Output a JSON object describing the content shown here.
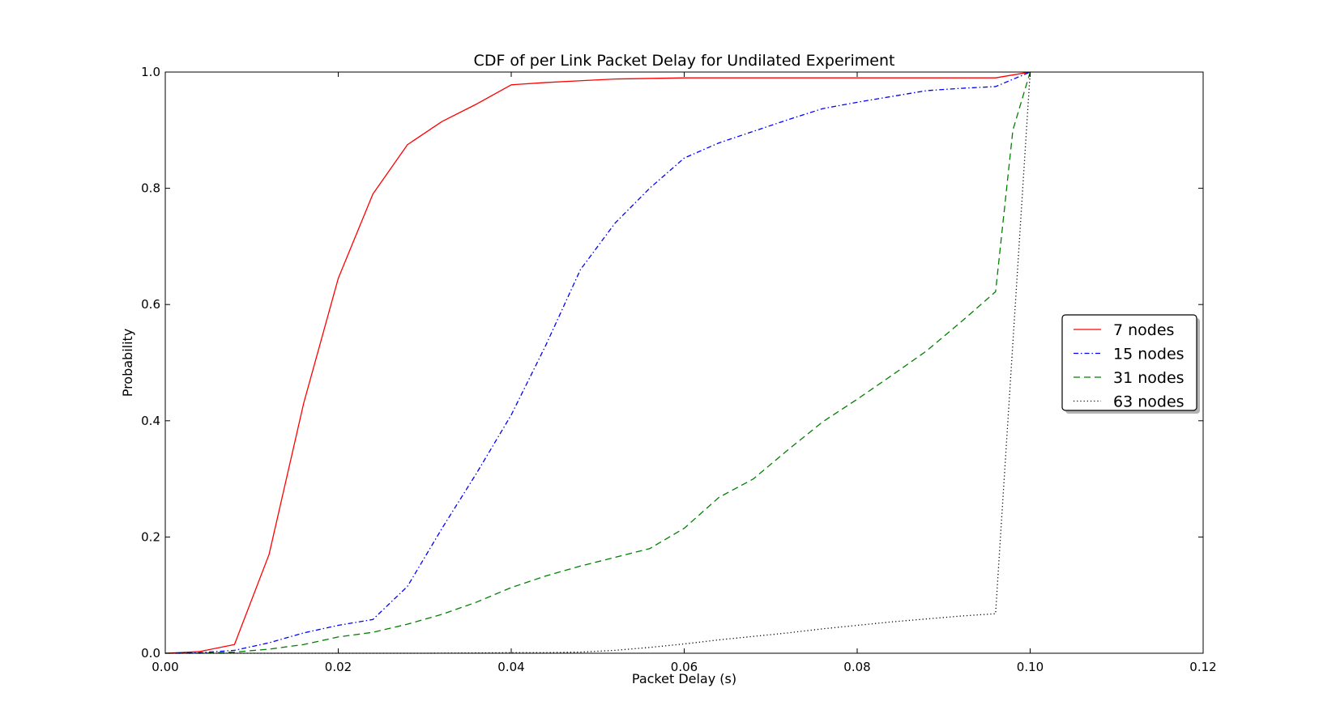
{
  "chart_data": {
    "type": "line",
    "title": "CDF of per Link Packet Delay for Undilated Experiment",
    "xlabel": "Packet Delay (s)",
    "ylabel": "Probability",
    "xlim": [
      0.0,
      0.12
    ],
    "ylim": [
      0.0,
      1.0
    ],
    "xticks": [
      "0.00",
      "0.02",
      "0.04",
      "0.06",
      "0.08",
      "0.10",
      "0.12"
    ],
    "yticks": [
      "0.0",
      "0.2",
      "0.4",
      "0.6",
      "0.8",
      "1.0"
    ],
    "grid": false,
    "legend_position": "right",
    "series": [
      {
        "name": "7 nodes",
        "color": "#ff0000",
        "style": "solid",
        "x": [
          0.0,
          0.004,
          0.008,
          0.012,
          0.016,
          0.02,
          0.024,
          0.028,
          0.032,
          0.036,
          0.04,
          0.044,
          0.048,
          0.052,
          0.06,
          0.08,
          0.096,
          0.1
        ],
        "y": [
          0.0,
          0.003,
          0.015,
          0.17,
          0.43,
          0.645,
          0.79,
          0.875,
          0.915,
          0.945,
          0.978,
          0.982,
          0.985,
          0.988,
          0.99,
          0.99,
          0.99,
          1.0
        ]
      },
      {
        "name": "15 nodes",
        "color": "#0000ff",
        "style": "dashdot",
        "x": [
          0.0,
          0.004,
          0.008,
          0.012,
          0.016,
          0.02,
          0.024,
          0.028,
          0.032,
          0.036,
          0.04,
          0.044,
          0.048,
          0.052,
          0.056,
          0.06,
          0.064,
          0.068,
          0.072,
          0.076,
          0.08,
          0.084,
          0.088,
          0.092,
          0.096,
          0.1
        ],
        "y": [
          0.0,
          0.001,
          0.005,
          0.018,
          0.035,
          0.048,
          0.058,
          0.115,
          0.215,
          0.31,
          0.41,
          0.53,
          0.66,
          0.74,
          0.8,
          0.852,
          0.878,
          0.898,
          0.918,
          0.937,
          0.948,
          0.958,
          0.968,
          0.972,
          0.975,
          1.0
        ]
      },
      {
        "name": "31 nodes",
        "color": "#008000",
        "style": "dashed",
        "x": [
          0.0,
          0.004,
          0.008,
          0.012,
          0.016,
          0.02,
          0.024,
          0.028,
          0.032,
          0.036,
          0.04,
          0.044,
          0.048,
          0.052,
          0.056,
          0.06,
          0.064,
          0.068,
          0.072,
          0.076,
          0.08,
          0.084,
          0.088,
          0.092,
          0.096,
          0.098,
          0.1
        ],
        "y": [
          0.0,
          0.0,
          0.002,
          0.007,
          0.015,
          0.028,
          0.036,
          0.05,
          0.067,
          0.088,
          0.113,
          0.133,
          0.15,
          0.165,
          0.18,
          0.215,
          0.268,
          0.3,
          0.35,
          0.398,
          0.437,
          0.478,
          0.52,
          0.57,
          0.622,
          0.9,
          1.0
        ]
      },
      {
        "name": "63 nodes",
        "color": "#000000",
        "style": "dotted",
        "x": [
          0.0,
          0.01,
          0.02,
          0.03,
          0.04,
          0.044,
          0.048,
          0.052,
          0.056,
          0.06,
          0.064,
          0.068,
          0.072,
          0.076,
          0.08,
          0.084,
          0.088,
          0.092,
          0.096,
          0.1
        ],
        "y": [
          0.0,
          0.0,
          0.0,
          0.0,
          0.001,
          0.001,
          0.002,
          0.005,
          0.01,
          0.016,
          0.023,
          0.029,
          0.035,
          0.042,
          0.048,
          0.054,
          0.059,
          0.064,
          0.068,
          1.0
        ]
      }
    ]
  }
}
